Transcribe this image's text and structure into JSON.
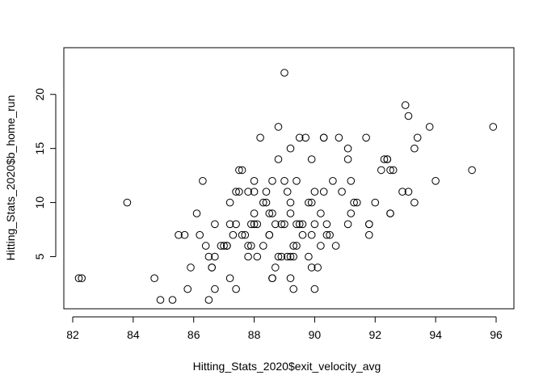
{
  "chart_data": {
    "type": "scatter",
    "title": "",
    "xlabel": "Hitting_Stats_2020$exit_velocity_avg",
    "ylabel": "Hitting_Stats_2020$b_home_run",
    "xlim": [
      82,
      96
    ],
    "ylim": [
      1,
      22
    ],
    "xticks": [
      82,
      84,
      86,
      88,
      90,
      92,
      94,
      96
    ],
    "yticks": [
      5,
      10,
      15,
      20
    ],
    "xtick_labels": [
      "82",
      "84",
      "86",
      "88",
      "90",
      "92",
      "94",
      "96"
    ],
    "ytick_labels": [
      "5",
      "10",
      "15",
      "20"
    ],
    "marker": "open-circle",
    "grid": false,
    "series": [
      {
        "points": [
          [
            82.2,
            3
          ],
          [
            82.3,
            3
          ],
          [
            83.8,
            10
          ],
          [
            84.7,
            3
          ],
          [
            84.9,
            1
          ],
          [
            85.3,
            1
          ],
          [
            85.5,
            7
          ],
          [
            85.7,
            7
          ],
          [
            85.8,
            2
          ],
          [
            85.9,
            4
          ],
          [
            86.1,
            9
          ],
          [
            86.2,
            7
          ],
          [
            86.3,
            12
          ],
          [
            86.4,
            6
          ],
          [
            86.5,
            1
          ],
          [
            86.5,
            5
          ],
          [
            86.6,
            4
          ],
          [
            86.6,
            4
          ],
          [
            86.7,
            8
          ],
          [
            86.7,
            5
          ],
          [
            86.7,
            2
          ],
          [
            86.9,
            6
          ],
          [
            87.0,
            6
          ],
          [
            87.1,
            6
          ],
          [
            87.1,
            6
          ],
          [
            87.2,
            3
          ],
          [
            87.2,
            8
          ],
          [
            87.2,
            10
          ],
          [
            87.3,
            7
          ],
          [
            87.4,
            11
          ],
          [
            87.4,
            8
          ],
          [
            87.4,
            2
          ],
          [
            87.5,
            13
          ],
          [
            87.5,
            11
          ],
          [
            87.6,
            13
          ],
          [
            87.6,
            7
          ],
          [
            87.7,
            7
          ],
          [
            87.8,
            11
          ],
          [
            87.8,
            6
          ],
          [
            87.8,
            5
          ],
          [
            87.9,
            6
          ],
          [
            87.9,
            8
          ],
          [
            88.0,
            12
          ],
          [
            88.0,
            11
          ],
          [
            88.0,
            9
          ],
          [
            88.0,
            8
          ],
          [
            88.1,
            8
          ],
          [
            88.1,
            5
          ],
          [
            88.2,
            16
          ],
          [
            88.3,
            6
          ],
          [
            88.3,
            10
          ],
          [
            88.4,
            11
          ],
          [
            88.4,
            10
          ],
          [
            88.5,
            9
          ],
          [
            88.5,
            7
          ],
          [
            88.5,
            7
          ],
          [
            88.6,
            9
          ],
          [
            88.6,
            12
          ],
          [
            88.6,
            3
          ],
          [
            88.6,
            3
          ],
          [
            88.7,
            4
          ],
          [
            88.7,
            8
          ],
          [
            88.8,
            17
          ],
          [
            88.8,
            14
          ],
          [
            88.8,
            5
          ],
          [
            88.9,
            5
          ],
          [
            88.9,
            8
          ],
          [
            89.0,
            22
          ],
          [
            89.0,
            12
          ],
          [
            89.0,
            8
          ],
          [
            89.1,
            11
          ],
          [
            89.1,
            5
          ],
          [
            89.2,
            15
          ],
          [
            89.2,
            10
          ],
          [
            89.2,
            9
          ],
          [
            89.2,
            3
          ],
          [
            89.2,
            5
          ],
          [
            89.3,
            2
          ],
          [
            89.3,
            6
          ],
          [
            89.3,
            5
          ],
          [
            89.4,
            8
          ],
          [
            89.4,
            12
          ],
          [
            89.4,
            6
          ],
          [
            89.5,
            16
          ],
          [
            89.5,
            8
          ],
          [
            89.6,
            8
          ],
          [
            89.6,
            7
          ],
          [
            89.7,
            16
          ],
          [
            89.8,
            5
          ],
          [
            89.8,
            10
          ],
          [
            89.9,
            14
          ],
          [
            89.9,
            10
          ],
          [
            89.9,
            7
          ],
          [
            89.9,
            4
          ],
          [
            90.0,
            11
          ],
          [
            90.0,
            8
          ],
          [
            90.0,
            2
          ],
          [
            90.1,
            4
          ],
          [
            90.2,
            9
          ],
          [
            90.2,
            6
          ],
          [
            90.3,
            16
          ],
          [
            90.3,
            16
          ],
          [
            90.3,
            11
          ],
          [
            90.4,
            8
          ],
          [
            90.4,
            7
          ],
          [
            90.5,
            7
          ],
          [
            90.6,
            12
          ],
          [
            90.7,
            6
          ],
          [
            90.8,
            16
          ],
          [
            90.9,
            11
          ],
          [
            91.1,
            15
          ],
          [
            91.1,
            14
          ],
          [
            91.1,
            8
          ],
          [
            91.2,
            9
          ],
          [
            91.2,
            12
          ],
          [
            91.3,
            10
          ],
          [
            91.4,
            10
          ],
          [
            91.7,
            16
          ],
          [
            91.8,
            8
          ],
          [
            91.8,
            8
          ],
          [
            91.8,
            7
          ],
          [
            92.0,
            10
          ],
          [
            92.2,
            13
          ],
          [
            92.3,
            14
          ],
          [
            92.4,
            14
          ],
          [
            92.4,
            14
          ],
          [
            92.5,
            13
          ],
          [
            92.5,
            9
          ],
          [
            92.5,
            9
          ],
          [
            92.6,
            13
          ],
          [
            92.9,
            11
          ],
          [
            93.0,
            19
          ],
          [
            93.1,
            18
          ],
          [
            93.1,
            11
          ],
          [
            93.3,
            10
          ],
          [
            93.3,
            15
          ],
          [
            93.4,
            16
          ],
          [
            93.8,
            17
          ],
          [
            94.0,
            12
          ],
          [
            95.2,
            13
          ],
          [
            95.9,
            17
          ]
        ]
      }
    ]
  }
}
